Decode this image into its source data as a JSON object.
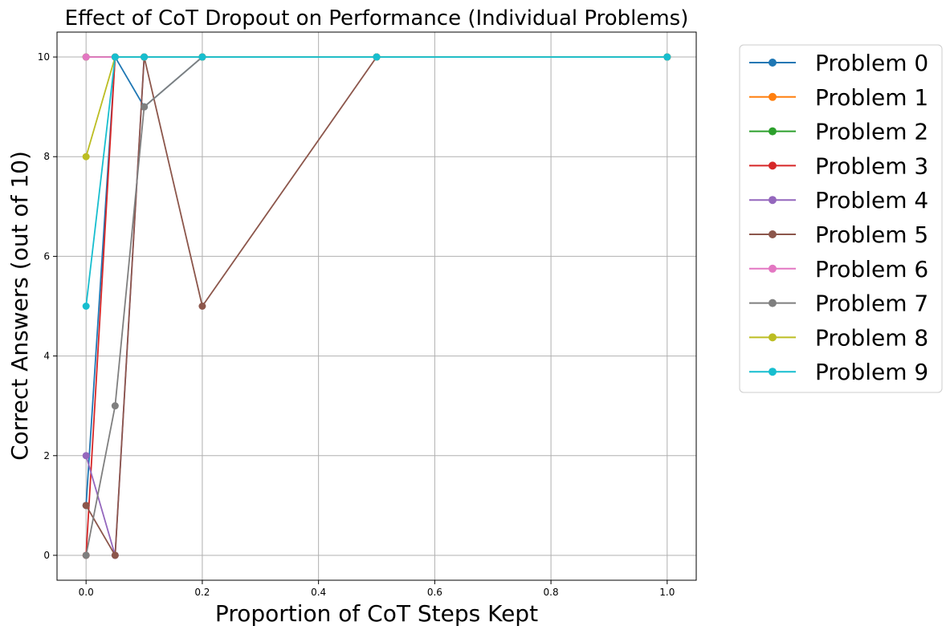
{
  "chart_data": {
    "type": "line",
    "title": "Effect of CoT Dropout on Performance (Individual Problems)",
    "xlabel": "Proportion of CoT Steps Kept",
    "ylabel": "Correct Answers (out of 10)",
    "xlim": [
      -0.05,
      1.05
    ],
    "ylim": [
      -0.5,
      10.5
    ],
    "xticks": [
      0.0,
      0.2,
      0.4,
      0.6,
      0.8,
      1.0
    ],
    "xtick_labels": [
      "0.0",
      "0.2",
      "0.4",
      "0.6",
      "0.8",
      "1.0"
    ],
    "yticks": [
      0,
      2,
      4,
      6,
      8,
      10
    ],
    "ytick_labels": [
      "0",
      "2",
      "4",
      "6",
      "8",
      "10"
    ],
    "grid": true,
    "legend_position": "outside-right-top",
    "x": [
      0.0,
      0.05,
      0.1,
      0.2,
      0.5,
      1.0
    ],
    "series": [
      {
        "name": "Problem 0",
        "color": "#1f77b4",
        "values": [
          1,
          10,
          9,
          10,
          10,
          10
        ]
      },
      {
        "name": "Problem 1",
        "color": "#ff7f0e",
        "values": [
          10,
          10,
          10,
          10,
          10,
          10
        ]
      },
      {
        "name": "Problem 2",
        "color": "#2ca02c",
        "values": [
          10,
          10,
          10,
          10,
          10,
          10
        ]
      },
      {
        "name": "Problem 3",
        "color": "#d62728",
        "values": [
          0,
          10,
          10,
          10,
          10,
          10
        ]
      },
      {
        "name": "Problem 4",
        "color": "#9467bd",
        "values": [
          2,
          0,
          10,
          10,
          10,
          10
        ]
      },
      {
        "name": "Problem 5",
        "color": "#8c564b",
        "values": [
          1,
          0,
          10,
          5,
          10,
          10
        ]
      },
      {
        "name": "Problem 6",
        "color": "#e377c2",
        "values": [
          10,
          10,
          10,
          10,
          10,
          10
        ]
      },
      {
        "name": "Problem 7",
        "color": "#7f7f7f",
        "values": [
          0,
          3,
          9,
          10,
          10,
          10
        ]
      },
      {
        "name": "Problem 8",
        "color": "#bcbd22",
        "values": [
          8,
          10,
          10,
          10,
          10,
          10
        ]
      },
      {
        "name": "Problem 9",
        "color": "#17becf",
        "values": [
          5,
          10,
          10,
          10,
          10,
          10
        ]
      }
    ]
  }
}
